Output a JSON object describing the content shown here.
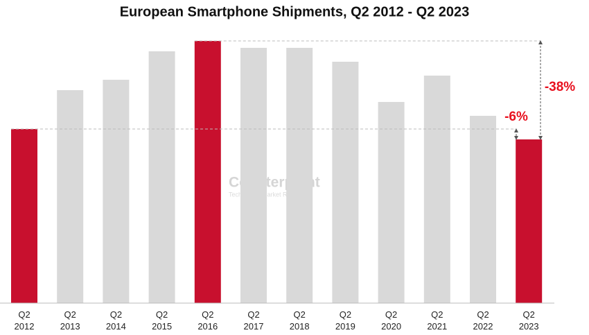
{
  "chart_data": {
    "type": "bar",
    "title": "European Smartphone Shipments, Q2 2012 - Q2 2023",
    "categories": [
      "Q2 2012",
      "Q2 2013",
      "Q2 2014",
      "Q2 2015",
      "Q2 2016",
      "Q2 2017",
      "Q2 2018",
      "Q2 2019",
      "Q2 2020",
      "Q2 2021",
      "Q2 2022",
      "Q2 2023"
    ],
    "values": [
      251,
      307,
      322,
      363,
      378,
      368,
      368,
      348,
      290,
      328,
      270,
      236
    ],
    "colors": [
      "#c8102e",
      "#d9d9d9",
      "#d9d9d9",
      "#d9d9d9",
      "#c8102e",
      "#d9d9d9",
      "#d9d9d9",
      "#d9d9d9",
      "#d9d9d9",
      "#d9d9d9",
      "#d9d9d9",
      "#c8102e"
    ],
    "ylim": [
      0,
      378
    ],
    "annotations": [
      {
        "text": "-6%",
        "from": "Q2 2012",
        "to": "Q2 2023"
      },
      {
        "text": "-38%",
        "from": "Q2 2016",
        "to": "Q2 2023"
      }
    ],
    "watermark": {
      "name": "Counterpoint",
      "tagline": "Technology Market Research"
    }
  }
}
